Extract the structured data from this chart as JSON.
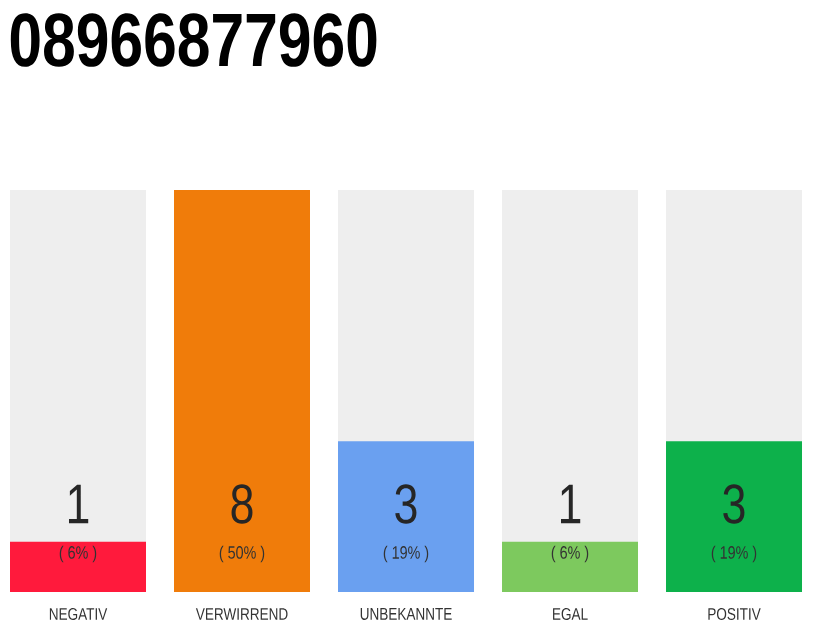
{
  "chart_data": {
    "type": "bar",
    "title": "08966877960",
    "categories": [
      "NEGATIV",
      "VERWIRREND",
      "UNBEKANNTE",
      "EGAL",
      "POSITIV"
    ],
    "values": [
      1,
      8,
      3,
      1,
      3
    ],
    "colors": [
      "#ff1a3c",
      "#f07c0a",
      "#6aa0f0",
      "#7dc95e",
      "#0db14b"
    ],
    "data_labels": true,
    "annotations": [
      "( 6% )",
      "( 50% )",
      "( 19% )",
      "( 6% )",
      "( 19% )"
    ]
  }
}
